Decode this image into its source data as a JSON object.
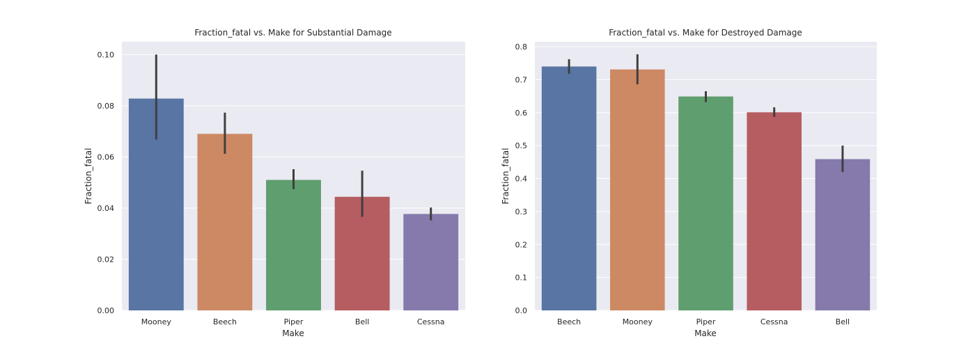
{
  "chart_data": [
    {
      "type": "bar",
      "title": "Fraction_fatal vs. Make for Substantial Damage",
      "xlabel": "Make",
      "ylabel": "Fraction_fatal",
      "categories": [
        "Mooney",
        "Beech",
        "Piper",
        "Bell",
        "Cessna"
      ],
      "values": [
        0.0828,
        0.069,
        0.051,
        0.0444,
        0.0377
      ],
      "error_low": [
        0.0668,
        0.0612,
        0.0474,
        0.0366,
        0.0352
      ],
      "error_high": [
        0.1,
        0.0773,
        0.0552,
        0.0546,
        0.0402
      ],
      "colors": [
        "#5875a4",
        "#cc8963",
        "#5f9e6e",
        "#b55d60",
        "#857aab"
      ],
      "ylim": [
        0,
        0.105
      ],
      "yticks": [
        0.0,
        0.02,
        0.04,
        0.06,
        0.08,
        0.1
      ],
      "ytick_labels": [
        "0.00",
        "0.02",
        "0.04",
        "0.06",
        "0.08",
        "0.10"
      ],
      "grid": true
    },
    {
      "type": "bar",
      "title": "Fraction_fatal vs. Make for Destroyed Damage",
      "xlabel": "Make",
      "ylabel": "Fraction_fatal",
      "categories": [
        "Beech",
        "Mooney",
        "Piper",
        "Cessna",
        "Bell"
      ],
      "values": [
        0.74,
        0.731,
        0.649,
        0.601,
        0.459
      ],
      "error_low": [
        0.718,
        0.686,
        0.632,
        0.587,
        0.42
      ],
      "error_high": [
        0.762,
        0.777,
        0.665,
        0.616,
        0.5
      ],
      "colors": [
        "#5875a4",
        "#cc8963",
        "#5f9e6e",
        "#b55d60",
        "#857aab"
      ],
      "ylim": [
        0,
        0.815
      ],
      "yticks": [
        0.0,
        0.1,
        0.2,
        0.3,
        0.4,
        0.5,
        0.6,
        0.7,
        0.8
      ],
      "ytick_labels": [
        "0.0",
        "0.1",
        "0.2",
        "0.3",
        "0.4",
        "0.5",
        "0.6",
        "0.7",
        "0.8"
      ],
      "grid": true
    }
  ],
  "style": {
    "axes_bg": "#eaeaf2",
    "grid_color": "#ffffff",
    "errorbar_color": "#3f3f3f"
  }
}
